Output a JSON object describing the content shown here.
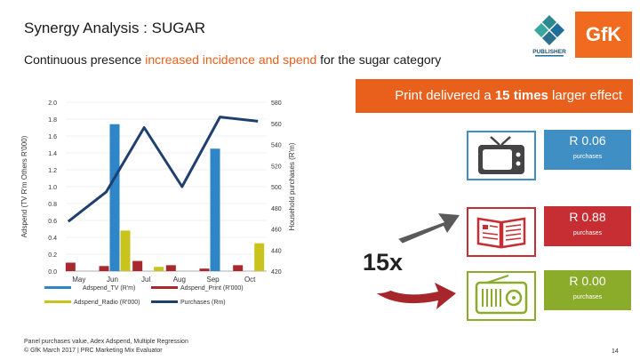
{
  "slide": {
    "title": "Synergy Analysis : SUGAR",
    "subtitle_before": "Continuous presence ",
    "subtitle_highlight": "increased incidence and spend",
    "subtitle_after": " for the sugar category",
    "logo_publisher": "PUBLISHER",
    "logo_gfk": "GfK",
    "print_effect_before": "Print delivered a ",
    "print_effect_bold": "15 times",
    "print_effect_after": " larger effect",
    "badge": "15x",
    "footnote_line1": "Panel purchases value, Adex Adspend, Multiple Regression",
    "footnote_line2": "© GfK March 2017 | PRC Marketing Mix Evaluator",
    "page_number": "14",
    "accent_color": "#e8601c"
  },
  "media": [
    {
      "icon": "tv-icon",
      "value": "R 0.06",
      "label": "purchases",
      "color": "#3f8fc4"
    },
    {
      "icon": "open-book-icon",
      "value": "R 0.88",
      "label": "purchases",
      "color": "#c62e33"
    },
    {
      "icon": "radio-icon",
      "value": "R 0.00",
      "label": "purchases",
      "color": "#8aac2a"
    }
  ],
  "chart_data": {
    "type": "bar",
    "categories": [
      "May",
      "Jun",
      "Jul",
      "Aug",
      "Sep",
      "Oct"
    ],
    "ylabel_left": "Adspend (TV R'm Others R'000)",
    "ylabel_right": "Household purchases (R'm)",
    "ylim_left": [
      0,
      2.0
    ],
    "ylim_right": [
      420,
      580
    ],
    "left_ticks": [
      "0.0",
      "0.2",
      "0.4",
      "0.6",
      "0.8",
      "1.0",
      "1.2",
      "1.4",
      "1.6",
      "1.8",
      "2.0"
    ],
    "right_ticks": [
      "420",
      "440",
      "460",
      "480",
      "500",
      "520",
      "540",
      "560",
      "580"
    ],
    "series": [
      {
        "name": "Adspend_TV (R'm)",
        "kind": "bar",
        "axis": "left",
        "color": "#2e86c8",
        "values": [
          0,
          1.74,
          0,
          0,
          1.45,
          0
        ]
      },
      {
        "name": "Adspend_Print (R'000)",
        "kind": "bar",
        "axis": "left",
        "color": "#a8282d",
        "values": [
          0.1,
          0.06,
          0.12,
          0.07,
          0.03,
          0.07
        ]
      },
      {
        "name": "Adspend_Radio (R'000)",
        "kind": "bar",
        "axis": "left",
        "color": "#c9c41d",
        "values": [
          0,
          0.48,
          0.05,
          0,
          0,
          0.33
        ]
      },
      {
        "name": "Purchases (Rm)",
        "kind": "line",
        "axis": "right",
        "color": "#1f3f6e",
        "values": [
          467,
          495,
          556,
          500,
          566,
          562
        ]
      }
    ]
  }
}
